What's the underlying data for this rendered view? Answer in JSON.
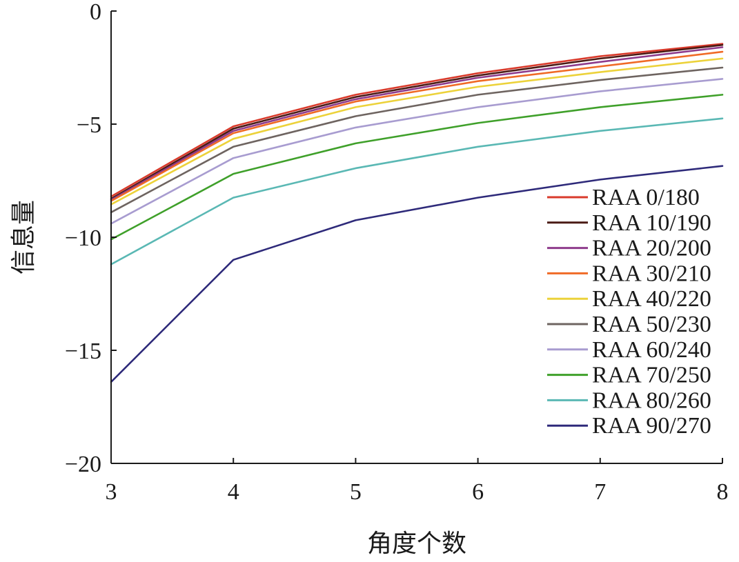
{
  "chart_data": {
    "type": "line",
    "title": "",
    "xlabel": "角度个数",
    "ylabel": "信息量",
    "x": [
      3,
      4,
      5,
      6,
      7,
      8
    ],
    "xlim": [
      3,
      8
    ],
    "ylim": [
      -20,
      0
    ],
    "xticks": [
      "3",
      "4",
      "5",
      "6",
      "7",
      "8"
    ],
    "yticks": [
      {
        "value": 0,
        "label": "0"
      },
      {
        "value": -5,
        "label": "−5"
      },
      {
        "value": -10,
        "label": "−10"
      },
      {
        "value": -15,
        "label": "−15"
      },
      {
        "value": -20,
        "label": "−20"
      }
    ],
    "grid": false,
    "legend_position": "right",
    "series": [
      {
        "name": "RAA 0/180",
        "color": "#d93a2b",
        "values": [
          -8.2,
          -5.1,
          -3.7,
          -2.75,
          -2.0,
          -1.45
        ]
      },
      {
        "name": "RAA 10/190",
        "color": "#4a1a14",
        "values": [
          -8.3,
          -5.2,
          -3.8,
          -2.85,
          -2.1,
          -1.5
        ]
      },
      {
        "name": "RAA 20/200",
        "color": "#8e3b8c",
        "values": [
          -8.35,
          -5.3,
          -3.9,
          -2.95,
          -2.25,
          -1.6
        ]
      },
      {
        "name": "RAA 30/210",
        "color": "#f06a26",
        "values": [
          -8.4,
          -5.4,
          -4.0,
          -3.1,
          -2.45,
          -1.8
        ]
      },
      {
        "name": "RAA 40/220",
        "color": "#ecd23a",
        "values": [
          -8.55,
          -5.65,
          -4.25,
          -3.35,
          -2.7,
          -2.1
        ]
      },
      {
        "name": "RAA 50/230",
        "color": "#6e6460",
        "values": [
          -8.9,
          -6.0,
          -4.65,
          -3.7,
          -3.05,
          -2.5
        ]
      },
      {
        "name": "RAA 60/240",
        "color": "#a89cd0",
        "values": [
          -9.4,
          -6.5,
          -5.15,
          -4.25,
          -3.55,
          -3.0
        ]
      },
      {
        "name": "RAA 70/250",
        "color": "#3fa02a",
        "values": [
          -10.1,
          -7.2,
          -5.85,
          -4.95,
          -4.25,
          -3.7
        ]
      },
      {
        "name": "RAA 80/260",
        "color": "#5ab8b4",
        "values": [
          -11.2,
          -8.25,
          -6.95,
          -6.0,
          -5.3,
          -4.75
        ]
      },
      {
        "name": "RAA 90/270",
        "color": "#2e2a7a",
        "values": [
          -16.4,
          -11.0,
          -9.25,
          -8.25,
          -7.45,
          -6.85
        ]
      }
    ]
  }
}
